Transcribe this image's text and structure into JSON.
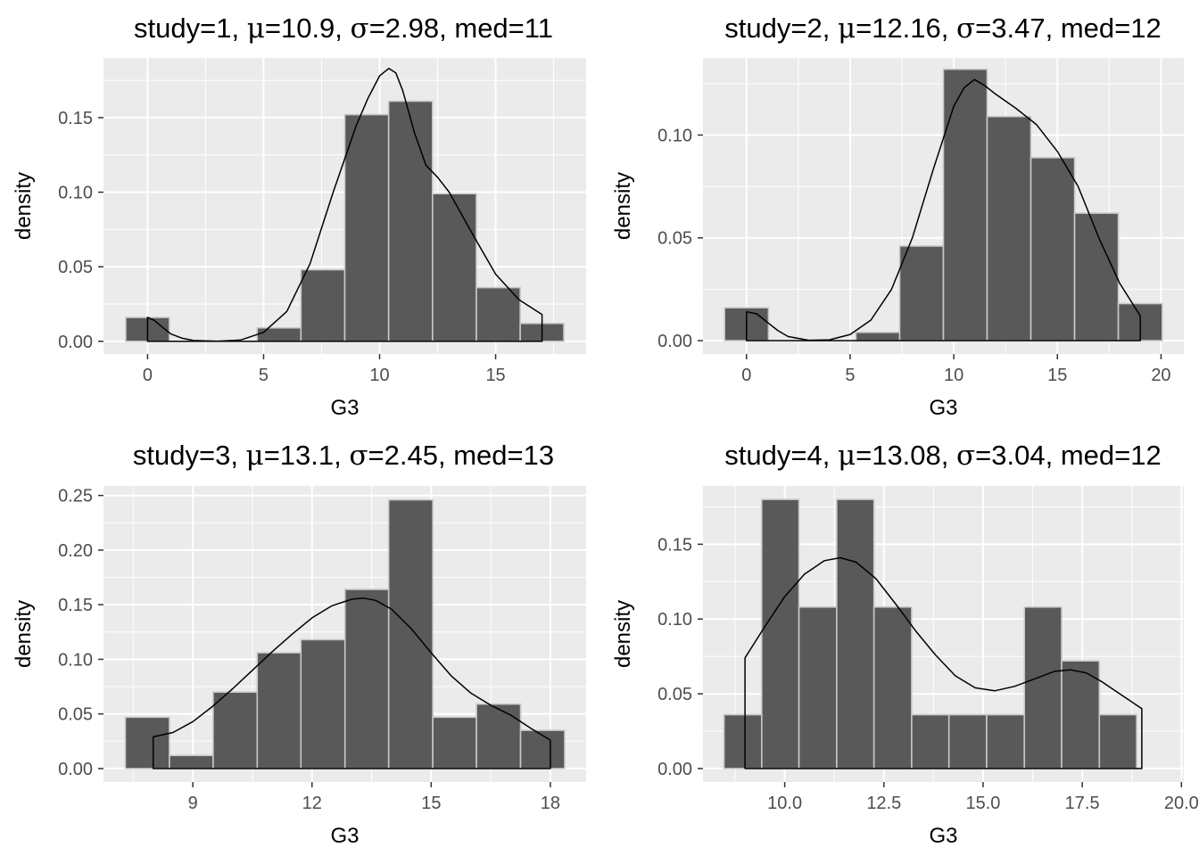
{
  "chart_data": [
    {
      "type": "bar",
      "title_parts": {
        "prefix": "study=1, ",
        "mu_symbol": "μ",
        "mu_text": "=10.9, ",
        "sigma_symbol": "σ",
        "sigma_text": "=2.98, med=11"
      },
      "xlabel": "G3",
      "ylabel": "density",
      "xlim": [
        -1.9,
        18.9
      ],
      "ylim": [
        -0.0085,
        0.19
      ],
      "xticks": [
        0,
        5,
        10,
        15
      ],
      "xtick_labels": [
        "0",
        "5",
        "10",
        "15"
      ],
      "yticks": [
        0,
        0.05,
        0.1,
        0.15
      ],
      "ytick_labels": [
        "0.00",
        "0.05",
        "0.10",
        "0.15"
      ],
      "bins": [
        {
          "x0": -0.94,
          "x1": 0.94,
          "value": 0.016
        },
        {
          "x0": 4.72,
          "x1": 6.61,
          "value": 0.009
        },
        {
          "x0": 6.61,
          "x1": 8.5,
          "value": 0.048
        },
        {
          "x0": 8.5,
          "x1": 10.39,
          "value": 0.152
        },
        {
          "x0": 10.39,
          "x1": 12.28,
          "value": 0.161
        },
        {
          "x0": 12.28,
          "x1": 14.17,
          "value": 0.099
        },
        {
          "x0": 14.17,
          "x1": 16.06,
          "value": 0.036
        },
        {
          "x0": 16.06,
          "x1": 17.94,
          "value": 0.012
        }
      ],
      "density": {
        "x": [
          0,
          0.3,
          0.6,
          1,
          1.5,
          2,
          3,
          4,
          5,
          6,
          7,
          8,
          9,
          9.5,
          10,
          10.4,
          10.7,
          11,
          11.5,
          12,
          12.5,
          13,
          14,
          15,
          16,
          17
        ],
        "y": [
          0.016,
          0.014,
          0.01,
          0.005,
          0.002,
          0.0005,
          0.0001,
          0.0008,
          0.006,
          0.02,
          0.052,
          0.1,
          0.145,
          0.163,
          0.178,
          0.183,
          0.18,
          0.168,
          0.14,
          0.118,
          0.11,
          0.1,
          0.072,
          0.045,
          0.028,
          0.018
        ]
      }
    },
    {
      "type": "bar",
      "title_parts": {
        "prefix": "study=2, ",
        "mu_symbol": "μ",
        "mu_text": "=12.16, ",
        "sigma_symbol": "σ",
        "sigma_text": "=3.47, med=12"
      },
      "xlabel": "G3",
      "ylabel": "density",
      "xlim": [
        -2.1,
        21.1
      ],
      "ylim": [
        -0.0065,
        0.1375
      ],
      "xticks": [
        0,
        5,
        10,
        15,
        20
      ],
      "xtick_labels": [
        "0",
        "5",
        "10",
        "15",
        "20"
      ],
      "yticks": [
        0,
        0.05,
        0.1
      ],
      "ytick_labels": [
        "0.00",
        "0.05",
        "0.10"
      ],
      "bins": [
        {
          "x0": -1.06,
          "x1": 1.06,
          "value": 0.016
        },
        {
          "x0": 5.28,
          "x1": 7.39,
          "value": 0.004
        },
        {
          "x0": 7.39,
          "x1": 9.5,
          "value": 0.046
        },
        {
          "x0": 9.5,
          "x1": 11.61,
          "value": 0.132
        },
        {
          "x0": 11.61,
          "x1": 13.72,
          "value": 0.109
        },
        {
          "x0": 13.72,
          "x1": 15.83,
          "value": 0.089
        },
        {
          "x0": 15.83,
          "x1": 17.94,
          "value": 0.062
        },
        {
          "x0": 17.94,
          "x1": 20.06,
          "value": 0.018
        }
      ],
      "density": {
        "x": [
          0,
          0.5,
          1,
          1.5,
          2,
          3,
          4,
          5,
          6,
          7,
          8,
          9,
          10,
          10.5,
          11,
          11.5,
          12,
          13,
          14,
          15,
          16,
          17,
          18,
          19
        ],
        "y": [
          0.014,
          0.013,
          0.009,
          0.005,
          0.002,
          0.0002,
          0.0004,
          0.003,
          0.01,
          0.025,
          0.05,
          0.083,
          0.114,
          0.123,
          0.127,
          0.124,
          0.12,
          0.113,
          0.105,
          0.092,
          0.075,
          0.05,
          0.028,
          0.012
        ]
      }
    },
    {
      "type": "bar",
      "title_parts": {
        "prefix": "study=3, ",
        "mu_symbol": "μ",
        "mu_text": "=13.1, ",
        "sigma_symbol": "σ",
        "sigma_text": "=2.45, med=13"
      },
      "xlabel": "G3",
      "ylabel": "density",
      "xlim": [
        6.75,
        18.9
      ],
      "ylim": [
        -0.0123,
        0.2587
      ],
      "xticks": [
        9,
        12,
        15,
        18
      ],
      "xtick_labels": [
        "9",
        "12",
        "15",
        "18"
      ],
      "yticks": [
        0,
        0.05,
        0.1,
        0.15,
        0.2,
        0.25
      ],
      "ytick_labels": [
        "0.00",
        "0.05",
        "0.10",
        "0.15",
        "0.20",
        "0.25"
      ],
      "bins": [
        {
          "x0": 7.3,
          "x1": 8.41,
          "value": 0.047
        },
        {
          "x0": 8.41,
          "x1": 9.51,
          "value": 0.012
        },
        {
          "x0": 9.51,
          "x1": 10.62,
          "value": 0.07
        },
        {
          "x0": 10.62,
          "x1": 11.72,
          "value": 0.106
        },
        {
          "x0": 11.72,
          "x1": 12.83,
          "value": 0.118
        },
        {
          "x0": 12.83,
          "x1": 13.93,
          "value": 0.164
        },
        {
          "x0": 13.93,
          "x1": 15.04,
          "value": 0.246
        },
        {
          "x0": 15.04,
          "x1": 16.14,
          "value": 0.047
        },
        {
          "x0": 16.14,
          "x1": 17.25,
          "value": 0.059
        },
        {
          "x0": 17.25,
          "x1": 18.36,
          "value": 0.035
        }
      ],
      "density": {
        "x": [
          8,
          8.5,
          9,
          9.5,
          10,
          10.5,
          11,
          11.5,
          12,
          12.5,
          13,
          13.3,
          13.6,
          14,
          14.5,
          15,
          15.5,
          16,
          16.5,
          17,
          17.5,
          18
        ],
        "y": [
          0.029,
          0.033,
          0.043,
          0.057,
          0.073,
          0.09,
          0.107,
          0.123,
          0.138,
          0.149,
          0.155,
          0.156,
          0.154,
          0.146,
          0.128,
          0.106,
          0.085,
          0.069,
          0.058,
          0.049,
          0.037,
          0.026
        ]
      }
    },
    {
      "type": "bar",
      "title_parts": {
        "prefix": "study=4, ",
        "mu_symbol": "μ",
        "mu_text": "=13.08, ",
        "sigma_symbol": "σ",
        "sigma_text": "=3.04, med=12"
      },
      "xlabel": "G3",
      "ylabel": "density",
      "xlim": [
        7.94,
        20.06
      ],
      "ylim": [
        -0.009,
        0.189
      ],
      "xticks": [
        10.0,
        12.5,
        15.0,
        17.5,
        20.0
      ],
      "xtick_labels": [
        "10.0",
        "12.5",
        "15.0",
        "17.5",
        "20.0"
      ],
      "yticks": [
        0,
        0.05,
        0.1,
        0.15
      ],
      "ytick_labels": [
        "0.00",
        "0.05",
        "0.10",
        "0.15"
      ],
      "bins": [
        {
          "x0": 8.47,
          "x1": 9.42,
          "value": 0.036
        },
        {
          "x0": 9.42,
          "x1": 10.36,
          "value": 0.18
        },
        {
          "x0": 10.36,
          "x1": 11.31,
          "value": 0.108
        },
        {
          "x0": 11.31,
          "x1": 12.25,
          "value": 0.18
        },
        {
          "x0": 12.25,
          "x1": 13.2,
          "value": 0.108
        },
        {
          "x0": 13.2,
          "x1": 14.14,
          "value": 0.036
        },
        {
          "x0": 14.14,
          "x1": 15.09,
          "value": 0.036
        },
        {
          "x0": 15.09,
          "x1": 16.04,
          "value": 0.036
        },
        {
          "x0": 16.04,
          "x1": 16.98,
          "value": 0.108
        },
        {
          "x0": 16.98,
          "x1": 17.93,
          "value": 0.072
        },
        {
          "x0": 17.93,
          "x1": 18.87,
          "value": 0.036
        }
      ],
      "density": {
        "x": [
          9,
          9.5,
          10,
          10.5,
          11,
          11.4,
          11.8,
          12.3,
          12.8,
          13.3,
          13.8,
          14.3,
          14.8,
          15.3,
          15.8,
          16.3,
          16.8,
          17.2,
          17.6,
          18,
          18.5,
          19
        ],
        "y": [
          0.074,
          0.095,
          0.115,
          0.13,
          0.139,
          0.141,
          0.138,
          0.127,
          0.11,
          0.092,
          0.076,
          0.062,
          0.054,
          0.052,
          0.055,
          0.06,
          0.065,
          0.066,
          0.064,
          0.058,
          0.049,
          0.04
        ]
      }
    }
  ]
}
